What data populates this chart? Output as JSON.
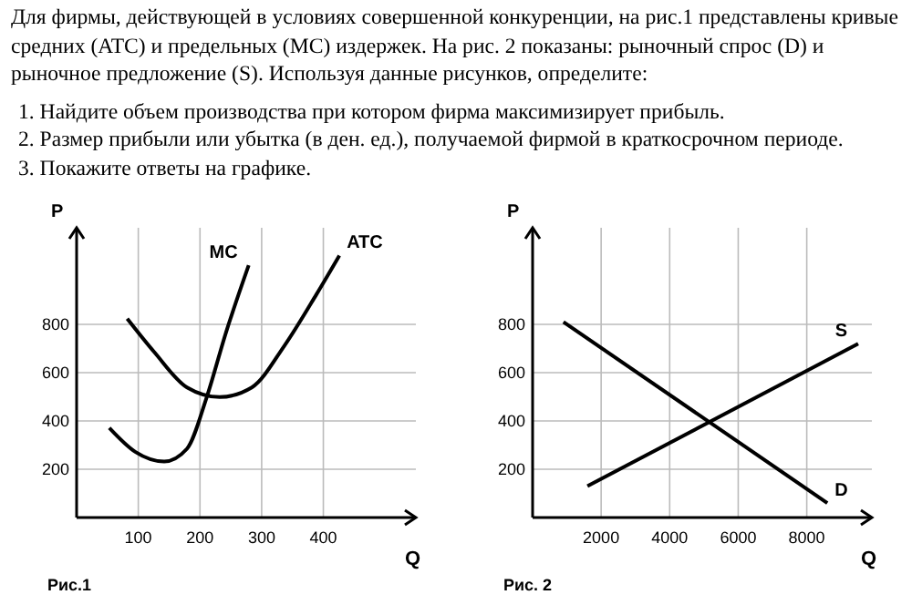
{
  "chart_data": [
    {
      "type": "line",
      "annotations": [
        "Для фирмы, действующей в условиях совершенной конкуренции, на рис.1 представлены кривые средних (ATC) и предельных (MC) издержек. На рис. 2 показаны: рыночный спрос (D) и рыночное предложение (S). Используя данные рисунков, определите:",
        "1. Найдите объем производства при котором фирма максимизирует прибыль.",
        "2. Размер прибыли или убытка (в ден. ед.), получаемой фирмой в краткосрочном периоде.",
        "3. Покажите ответы на графике.",
        "Рис.1"
      ],
      "xlabel": "Q",
      "ylabel": "P",
      "xlim": [
        0,
        550
      ],
      "ylim": [
        0,
        1200
      ],
      "xticks": [
        100,
        200,
        300,
        400
      ],
      "yticks": [
        200,
        400,
        600,
        800
      ],
      "grid": true,
      "legend": false,
      "series": [
        {
          "name": "MC",
          "color": "#000000",
          "x": [
            53,
            95,
            142,
            179,
            211,
            242,
            279
          ],
          "values": [
            371,
            272,
            232,
            285,
            499,
            765,
            1045
          ]
        },
        {
          "name": "ATC",
          "color": "#000000",
          "x": [
            82,
            126,
            179,
            232,
            284,
            337,
            389,
            426
          ],
          "values": [
            824,
            685,
            539,
            499,
            539,
            712,
            925,
            1085
          ]
        }
      ]
    },
    {
      "type": "line",
      "annotations": [
        "Рис. 2"
      ],
      "xlabel": "Q",
      "ylabel": "P",
      "xlim": [
        0,
        9900
      ],
      "ylim": [
        0,
        1200
      ],
      "xticks": [
        2000,
        4000,
        6000,
        8000
      ],
      "yticks": [
        200,
        400,
        600,
        800
      ],
      "grid": true,
      "legend": false,
      "series": [
        {
          "name": "S",
          "color": "#000000",
          "x": [
            1600,
            9500
          ],
          "values": [
            130,
            720
          ]
        },
        {
          "name": "D",
          "color": "#000000",
          "x": [
            900,
            8600
          ],
          "values": [
            810,
            60
          ]
        }
      ]
    }
  ]
}
